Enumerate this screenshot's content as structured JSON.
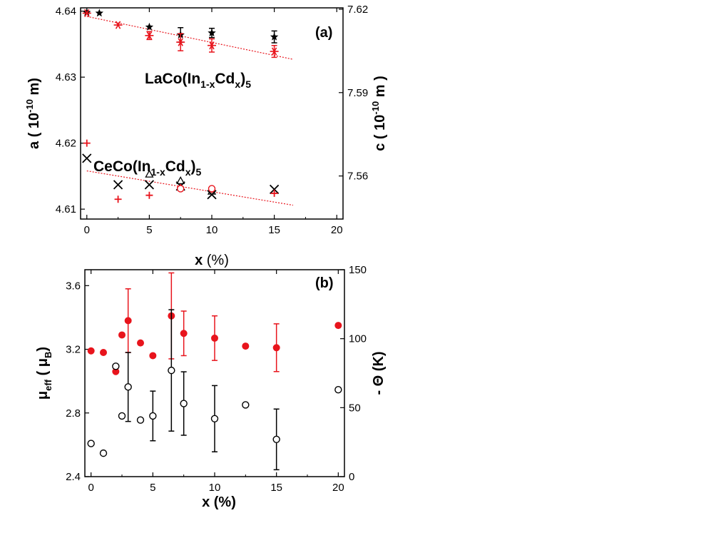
{
  "chart_data": [
    {
      "type": "scatter",
      "panel_label": "(a)",
      "xlabel_bold": "x",
      "xlabel_rest": " (%)",
      "xlim": [
        -0.5,
        20.5
      ],
      "xticks": [
        0,
        5,
        10,
        15,
        20
      ],
      "ylabel_left": {
        "pre": "a ( 10",
        "sup": "-10",
        "post": " m)"
      },
      "ylim_left": [
        4.6085,
        4.6405
      ],
      "yticks_left": [
        4.61,
        4.62,
        4.63,
        4.64
      ],
      "ytick_labels_left": [
        "4.61",
        "4.62",
        "4.63",
        "4.64"
      ],
      "ylabel_right": {
        "pre": "c ( 10",
        "sup": "-10",
        "post": " m )"
      },
      "ylim_right": [
        7.5445,
        7.6205
      ],
      "yticks_right": [
        7.56,
        7.59,
        7.62
      ],
      "ytick_labels_right": [
        "7.56",
        "7.59",
        "7.62"
      ],
      "annotation_la": {
        "base": "LaCo(In",
        "sub1": "1-x",
        "mid": "Cd",
        "sub2": "x",
        "close": ")",
        "sub3": "5"
      },
      "annotation_ce": {
        "base": "CeCo(In",
        "sub1": "1-x",
        "mid": "Cd",
        "sub2": "x",
        "close": ")",
        "sub3": "5"
      },
      "series": [
        {
          "name": "LaCo a",
          "axis": "left",
          "marker": "star",
          "color": "#000000",
          "x": [
            0,
            1,
            5,
            7.5,
            10,
            15
          ],
          "y": [
            4.6398,
            4.6397,
            4.6376,
            4.6364,
            4.6367,
            4.6361
          ],
          "err": [
            0,
            0,
            0,
            0.0011,
            0.0007,
            0.0009
          ]
        },
        {
          "name": "LaCo c",
          "axis": "left",
          "marker": "asterisk",
          "color": "#e8141c",
          "x": [
            0,
            2.5,
            5,
            7.5,
            10,
            15
          ],
          "y": [
            4.6397,
            4.6379,
            4.6363,
            4.6353,
            4.6348,
            4.6339
          ],
          "err": [
            0,
            0,
            0.0006,
            0.0013,
            0.001,
            0.0009
          ]
        },
        {
          "name": "CeCo a",
          "axis": "left",
          "marker": "x",
          "color": "#000000",
          "x": [
            0,
            2.5,
            5,
            7.5,
            10,
            15
          ],
          "y": [
            4.6177,
            4.6137,
            4.6137,
            4.6135,
            4.6122,
            4.613
          ],
          "err": []
        },
        {
          "name": "CeCo c",
          "axis": "left",
          "marker": "plus",
          "color": "#e8141c",
          "x": [
            0,
            2.5,
            5,
            7.5,
            10,
            15
          ],
          "y": [
            4.62,
            4.6115,
            4.6121,
            4.6133,
            4.613,
            4.6124
          ],
          "err": []
        },
        {
          "name": "CeCo extra",
          "axis": "left",
          "marker": "triangle",
          "color": "#000000",
          "x": [
            5,
            7.5,
            10
          ],
          "y": [
            4.6153,
            4.6143,
            4.6127
          ],
          "err": []
        },
        {
          "name": "CeCo extra red",
          "axis": "left",
          "marker": "circle-open",
          "color": "#e8141c",
          "x": [
            7.5,
            10
          ],
          "y": [
            4.6131,
            4.6131
          ],
          "err": []
        }
      ],
      "fit_lines": [
        {
          "color": "#e8141c",
          "x": [
            0,
            16.5
          ],
          "y": [
            4.6392,
            4.6327
          ]
        },
        {
          "color": "#e8141c",
          "x": [
            0,
            16.5
          ],
          "y": [
            4.6158,
            4.6106
          ]
        }
      ]
    },
    {
      "type": "scatter",
      "panel_label": "(b)",
      "xlabel": "x (%)",
      "xlim": [
        -0.5,
        20.5
      ],
      "xticks": [
        0,
        5,
        10,
        15,
        20
      ],
      "ylabel_left": {
        "mu": "μ",
        "sub": "eff",
        "mid": " ( μ",
        "sub2": "B",
        "close": ")"
      },
      "ylim_left": [
        2.4,
        3.7
      ],
      "yticks_left": [
        2.4,
        2.8,
        3.2,
        3.6
      ],
      "ytick_labels_left": [
        "2.4",
        "2.8",
        "3.2",
        "3.6"
      ],
      "ylabel_right": "- Θ (K)",
      "ylim_right": [
        0,
        150
      ],
      "yticks_right": [
        0,
        50,
        100,
        150
      ],
      "ytick_labels_right": [
        "0",
        "50",
        "100",
        "150"
      ],
      "series": [
        {
          "name": "mu_eff",
          "axis": "left",
          "marker": "circle-filled",
          "color": "#e8141c",
          "x": [
            0,
            1,
            2,
            2.5,
            3,
            4,
            5,
            6.5,
            7.5,
            10,
            12.5,
            15,
            20
          ],
          "y": [
            3.19,
            3.18,
            3.06,
            3.29,
            3.38,
            3.24,
            3.16,
            3.41,
            3.3,
            3.27,
            3.22,
            3.21,
            3.35
          ],
          "err": [
            0,
            0,
            0,
            0,
            0.2,
            0,
            0,
            0.27,
            0.14,
            0.14,
            0,
            0.15,
            0
          ]
        },
        {
          "name": "Theta",
          "axis": "right",
          "marker": "circle-open",
          "color": "#000000",
          "x": [
            0,
            1,
            2,
            2.5,
            3,
            4,
            5,
            6.5,
            7.5,
            10,
            12.5,
            15,
            20
          ],
          "y": [
            24,
            17,
            80,
            44,
            65,
            41,
            44,
            77,
            53,
            42,
            52,
            27,
            63
          ],
          "err": [
            0,
            0,
            0,
            0,
            25,
            0,
            18,
            44,
            23,
            24,
            0,
            22,
            0
          ]
        }
      ]
    }
  ]
}
